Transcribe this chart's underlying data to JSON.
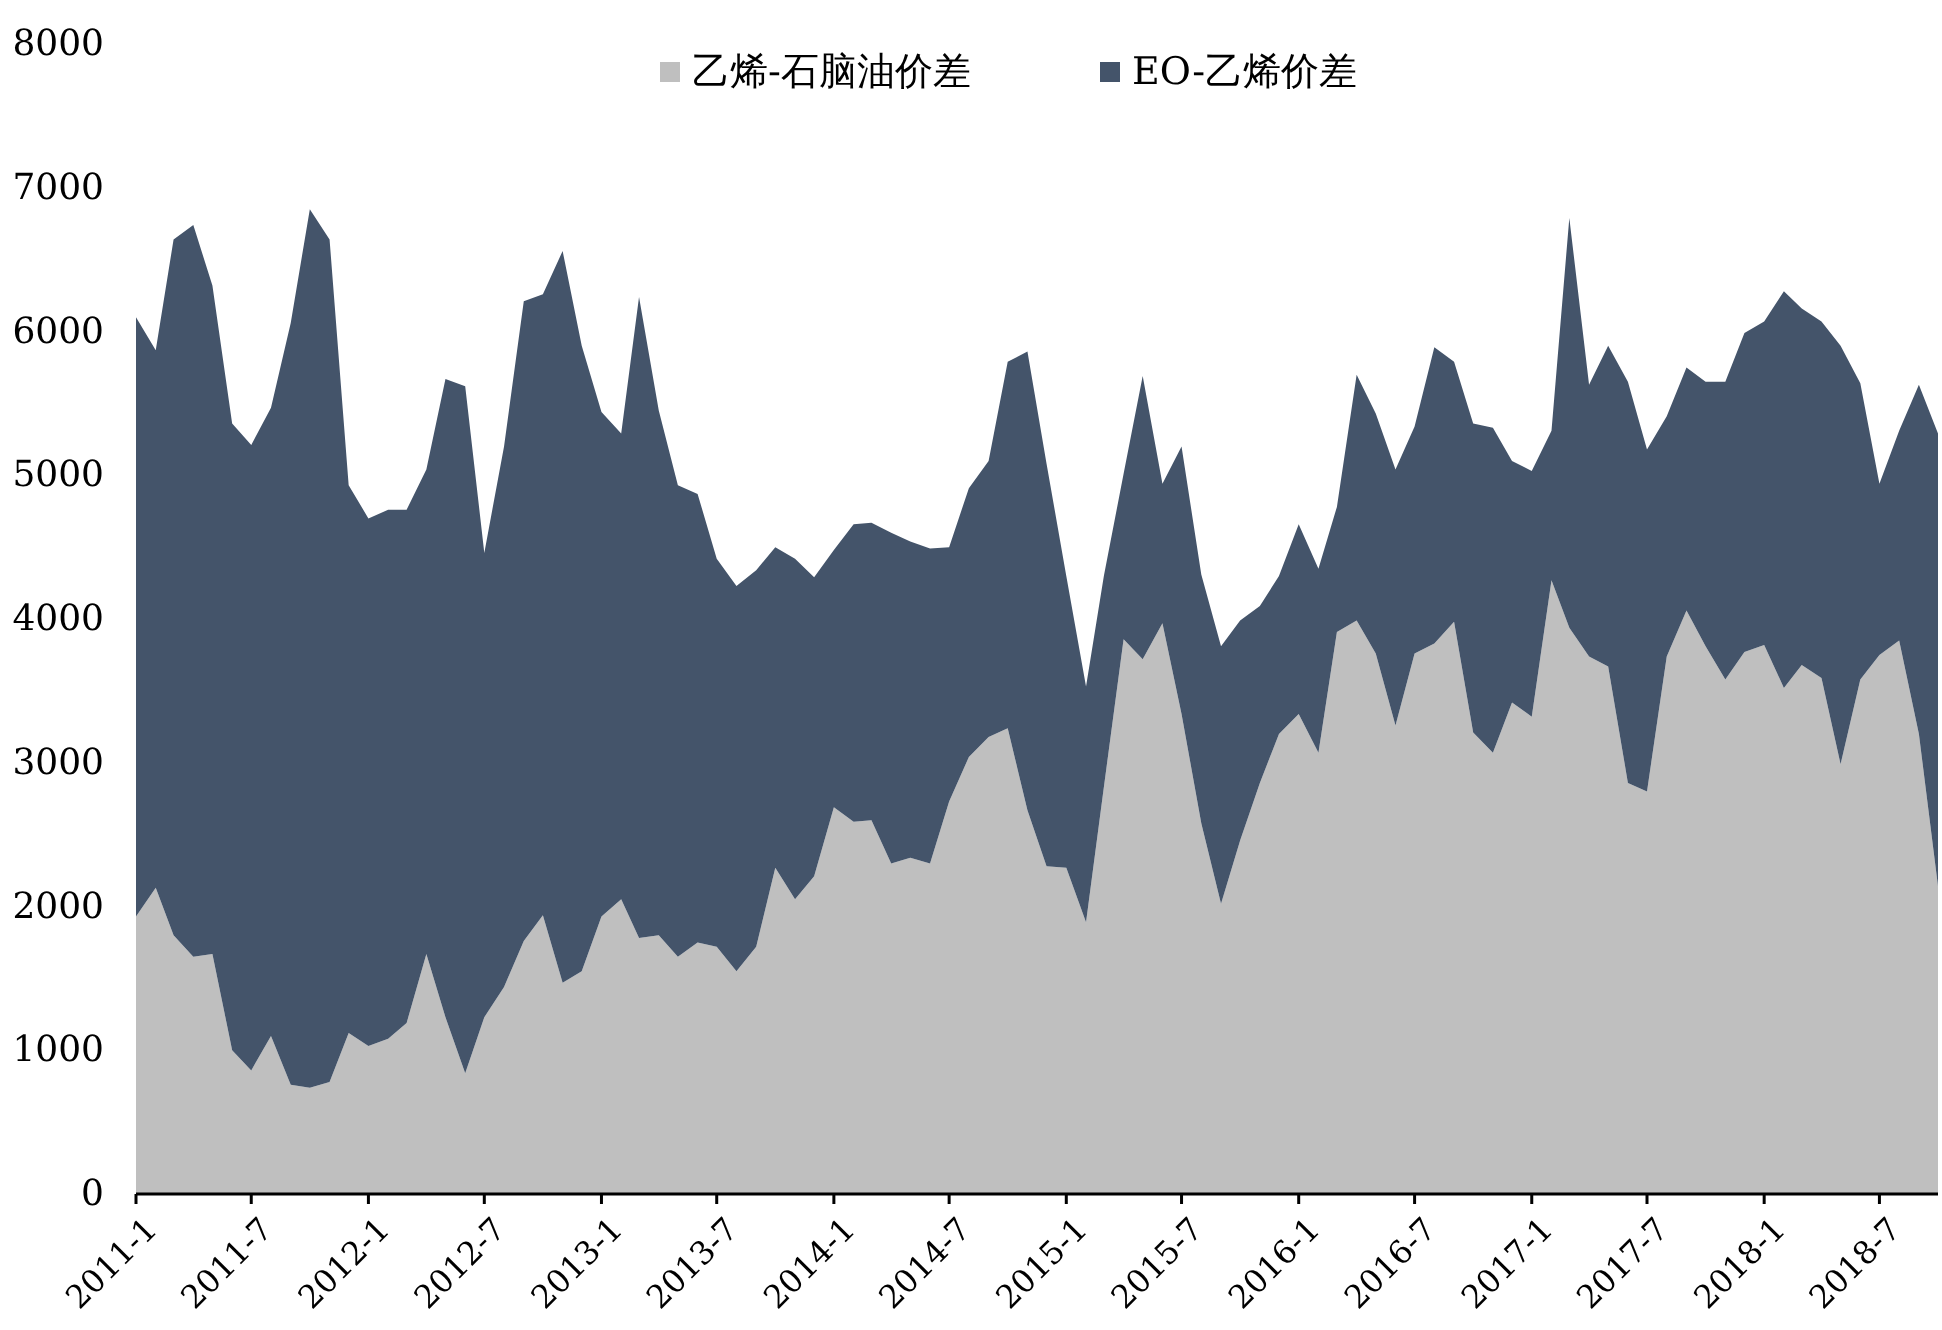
{
  "chart_data": {
    "type": "area",
    "stacked": true,
    "legend": "top",
    "grid": false,
    "x": [
      "2011-01",
      "2011-02",
      "2011-03",
      "2011-04",
      "2011-05",
      "2011-06",
      "2011-07",
      "2011-08",
      "2011-09",
      "2011-10",
      "2011-11",
      "2011-12",
      "2012-01",
      "2012-02",
      "2012-03",
      "2012-04",
      "2012-05",
      "2012-06",
      "2012-07",
      "2012-08",
      "2012-09",
      "2012-10",
      "2012-11",
      "2012-12",
      "2013-01",
      "2013-02",
      "2013-03",
      "2013-04",
      "2013-05",
      "2013-06",
      "2013-07",
      "2013-08",
      "2013-09",
      "2013-10",
      "2013-11",
      "2013-12",
      "2014-01",
      "2014-02",
      "2014-03",
      "2014-04",
      "2014-05",
      "2014-06",
      "2014-07",
      "2014-08",
      "2014-09",
      "2014-10",
      "2014-11",
      "2014-12",
      "2015-01",
      "2015-02",
      "2015-03",
      "2015-04",
      "2015-05",
      "2015-06",
      "2015-07",
      "2015-08",
      "2015-09",
      "2015-10",
      "2015-11",
      "2015-12",
      "2016-01",
      "2016-02",
      "2016-03",
      "2016-04",
      "2016-05",
      "2016-06",
      "2016-07",
      "2016-08",
      "2016-09",
      "2016-10",
      "2016-11",
      "2016-12",
      "2017-01",
      "2017-02",
      "2017-03",
      "2017-04",
      "2017-05",
      "2017-06",
      "2017-07",
      "2017-08",
      "2017-09",
      "2017-10",
      "2017-11",
      "2017-12",
      "2018-01",
      "2018-02",
      "2018-03",
      "2018-04",
      "2018-05",
      "2018-06",
      "2018-07",
      "2018-08",
      "2018-09",
      "2018-10"
    ],
    "series": [
      {
        "name": "乙烯-石脑油价差",
        "color": "#bfbfbf",
        "values": [
          1930,
          2130,
          1800,
          1650,
          1670,
          1000,
          860,
          1100,
          760,
          740,
          780,
          1120,
          1030,
          1080,
          1190,
          1670,
          1230,
          840,
          1230,
          1440,
          1760,
          1940,
          1470,
          1550,
          1930,
          2050,
          1780,
          1800,
          1650,
          1750,
          1720,
          1550,
          1720,
          2270,
          2050,
          2210,
          2690,
          2590,
          2600,
          2300,
          2340,
          2300,
          2730,
          3040,
          3180,
          3240,
          2670,
          2280,
          2270,
          1890,
          2830,
          3860,
          3720,
          3970,
          3340,
          2580,
          2020,
          2460,
          2860,
          3200,
          3340,
          3070,
          3910,
          3990,
          3760,
          3260,
          3760,
          3830,
          3980,
          3210,
          3070,
          3420,
          3320,
          4270,
          3940,
          3740,
          3670,
          2860,
          2800,
          3740,
          4060,
          3810,
          3580,
          3770,
          3820,
          3520,
          3680,
          3590,
          2990,
          3580,
          3750,
          3850,
          3200,
          2140
        ]
      },
      {
        "name": "EO-乙烯价差",
        "color": "#44546a",
        "values": [
          4170,
          3740,
          4840,
          5090,
          4650,
          4360,
          4350,
          4370,
          5300,
          6110,
          5860,
          3810,
          3670,
          3680,
          3570,
          3370,
          4440,
          4780,
          3230,
          3760,
          4450,
          4320,
          5090,
          4350,
          3510,
          3240,
          4460,
          3650,
          3280,
          3120,
          2700,
          2680,
          2620,
          2230,
          2370,
          2080,
          1790,
          2070,
          2070,
          2300,
          2200,
          2190,
          1770,
          1870,
          1920,
          2550,
          3190,
          2800,
          2030,
          1640,
          1470,
          1150,
          1970,
          970,
          1860,
          1730,
          1790,
          1530,
          1230,
          1100,
          1320,
          1280,
          870,
          1710,
          1670,
          1780,
          1580,
          2060,
          1810,
          2150,
          2260,
          1680,
          1710,
          1040,
          2850,
          1890,
          2230,
          2790,
          2380,
          1670,
          1690,
          1840,
          2070,
          2220,
          2250,
          2760,
          2480,
          2480,
          2910,
          2060,
          1190,
          1460,
          2430,
          3150
        ]
      }
    ],
    "xlim": [
      "2011-01",
      "2018-10"
    ],
    "xticks": [
      {
        "value": "2011-01",
        "label": "2011-1"
      },
      {
        "value": "2011-07",
        "label": "2011-7"
      },
      {
        "value": "2012-01",
        "label": "2012-1"
      },
      {
        "value": "2012-07",
        "label": "2012-7"
      },
      {
        "value": "2013-01",
        "label": "2013-1"
      },
      {
        "value": "2013-07",
        "label": "2013-7"
      },
      {
        "value": "2014-01",
        "label": "2014-1"
      },
      {
        "value": "2014-07",
        "label": "2014-7"
      },
      {
        "value": "2015-01",
        "label": "2015-1"
      },
      {
        "value": "2015-07",
        "label": "2015-7"
      },
      {
        "value": "2016-01",
        "label": "2016-1"
      },
      {
        "value": "2016-07",
        "label": "2016-7"
      },
      {
        "value": "2017-01",
        "label": "2017-1"
      },
      {
        "value": "2017-07",
        "label": "2017-7"
      },
      {
        "value": "2018-01",
        "label": "2018-1"
      },
      {
        "value": "2018-07",
        "label": "2018-7"
      }
    ],
    "ylim": [
      0,
      8000
    ],
    "yticks": [
      0,
      1000,
      2000,
      3000,
      4000,
      5000,
      6000,
      7000,
      8000
    ]
  }
}
